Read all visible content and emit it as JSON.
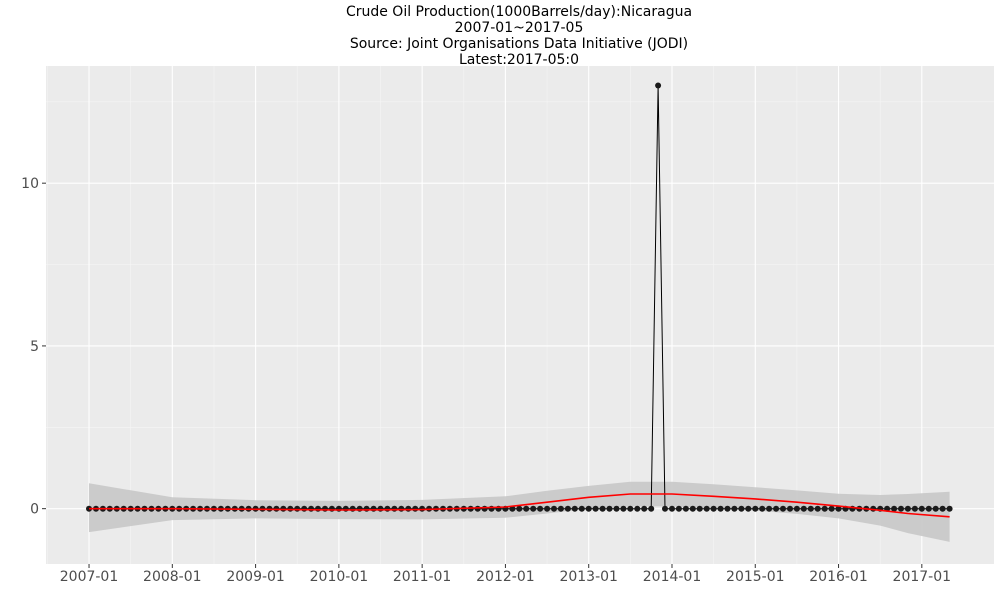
{
  "title_lines": [
    "Crude Oil Production(1000Barrels/day):Nicaragua",
    "2007-01~2017-05",
    "Source: Joint Organisations Data Initiative (JODI)",
    "Latest:2017-05:0"
  ],
  "chart_data": {
    "type": "line",
    "title": "Crude Oil Production(1000Barrels/day):Nicaragua",
    "subtitle": "2007-01~2017-05",
    "source": "Source: Joint Organisations Data Initiative (JODI)",
    "latest": "Latest:2017-05:0",
    "xlabel": "",
    "ylabel": "",
    "x_start": "2007-01",
    "x_end": "2017-05",
    "n_points": 125,
    "xlim_month_index": [
      -6.2,
      130.4
    ],
    "ylim": [
      -1.7,
      13.6
    ],
    "x_tick_labels": [
      "2007-01",
      "2008-01",
      "2009-01",
      "2010-01",
      "2011-01",
      "2012-01",
      "2013-01",
      "2014-01",
      "2015-01",
      "2016-01",
      "2017-01"
    ],
    "y_ticks": [
      0,
      5,
      10
    ],
    "y_tick_labels": [
      "0",
      "5",
      "10"
    ],
    "baseline_value": 0,
    "spike": {
      "month": "2013-11",
      "value": 13
    },
    "smooth_trend": {
      "months": [
        0,
        12,
        24,
        36,
        48,
        60,
        66,
        72,
        78,
        84,
        90,
        96,
        102,
        108,
        114,
        118,
        124
      ],
      "values": [
        0.0,
        0.0,
        -0.02,
        -0.04,
        -0.03,
        0.05,
        0.2,
        0.35,
        0.45,
        0.45,
        0.38,
        0.3,
        0.2,
        0.08,
        -0.05,
        -0.15,
        -0.25
      ],
      "ci_lower": [
        -0.72,
        -0.35,
        -0.3,
        -0.32,
        -0.33,
        -0.28,
        -0.15,
        0.0,
        0.07,
        0.07,
        0.01,
        -0.06,
        -0.16,
        -0.3,
        -0.52,
        -0.75,
        -1.02
      ],
      "ci_upper": [
        0.78,
        0.35,
        0.26,
        0.24,
        0.27,
        0.38,
        0.55,
        0.7,
        0.83,
        0.83,
        0.75,
        0.66,
        0.56,
        0.46,
        0.42,
        0.45,
        0.52
      ]
    },
    "colors": {
      "panel_background": "#ebebeb",
      "grid_major": "#ffffff",
      "grid_minor": "#f5f5f5",
      "line": "#000000",
      "points": "#1a1a1a",
      "smooth": "#ff0000",
      "ci_band": "#c8c8c8"
    },
    "grid": true,
    "legend": "none"
  }
}
